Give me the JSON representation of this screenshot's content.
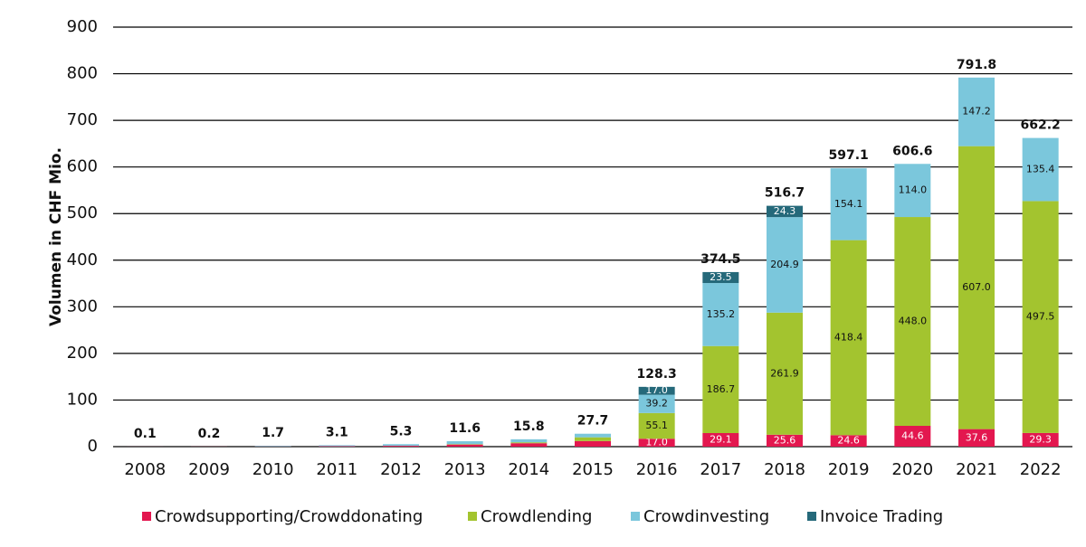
{
  "chart_data": {
    "type": "bar",
    "stacked": true,
    "title": "",
    "xlabel": "",
    "ylabel": "Volumen in CHF Mio.",
    "ylim": [
      0,
      900
    ],
    "yticks": [
      0,
      100,
      200,
      300,
      400,
      500,
      600,
      700,
      800,
      900
    ],
    "grid": true,
    "legend_position": "bottom",
    "categories": [
      "2008",
      "2009",
      "2010",
      "2011",
      "2012",
      "2013",
      "2014",
      "2015",
      "2016",
      "2017",
      "2018",
      "2019",
      "2020",
      "2021",
      "2022"
    ],
    "series": [
      {
        "name": "Crowdsupporting/Crowddonating",
        "color": "#e3174f",
        "values": [
          0.1,
          0.2,
          0.5,
          1.0,
          1.8,
          4.5,
          7.3,
          12.0,
          17.0,
          29.1,
          25.6,
          24.6,
          44.6,
          37.6,
          29.3
        ],
        "labels": [
          null,
          null,
          null,
          null,
          null,
          null,
          null,
          null,
          "17.0",
          "29.1",
          "25.6",
          "24.6",
          "44.6",
          "37.6",
          "29.3"
        ]
      },
      {
        "name": "Crowdlending",
        "color": "#a3c42f",
        "values": [
          0,
          0,
          0,
          0,
          0,
          1.0,
          2.0,
          8.0,
          55.1,
          186.7,
          261.9,
          418.4,
          448.0,
          607.0,
          497.5
        ],
        "labels": [
          null,
          null,
          null,
          null,
          null,
          null,
          null,
          null,
          "55.1",
          "186.7",
          "261.9",
          "418.4",
          "448.0",
          "607.0",
          "497.5"
        ]
      },
      {
        "name": "Crowdinvesting",
        "color": "#7bc7dc",
        "values": [
          0,
          0,
          1.2,
          2.1,
          3.5,
          6.1,
          6.5,
          7.7,
          39.2,
          135.2,
          204.9,
          154.1,
          114.0,
          147.2,
          135.4
        ],
        "labels": [
          null,
          null,
          null,
          null,
          null,
          null,
          null,
          null,
          "39.2",
          "135.2",
          "204.9",
          "154.1",
          "114.0",
          "147.2",
          "135.4"
        ]
      },
      {
        "name": "Invoice Trading",
        "color": "#25697a",
        "values": [
          0,
          0,
          0,
          0,
          0,
          0,
          0,
          0,
          17.0,
          23.5,
          24.3,
          0,
          0,
          0,
          0
        ],
        "labels": [
          null,
          null,
          null,
          null,
          null,
          null,
          null,
          null,
          "17.0",
          "23.5",
          "24.3",
          null,
          null,
          null,
          null
        ]
      }
    ],
    "totals": [
      "0.1",
      "0.2",
      "1.7",
      "3.1",
      "5.3",
      "11.6",
      "15.8",
      "27.7",
      "128.3",
      "374.5",
      "516.7",
      "597.1",
      "606.6",
      "791.8",
      "662.2"
    ]
  }
}
